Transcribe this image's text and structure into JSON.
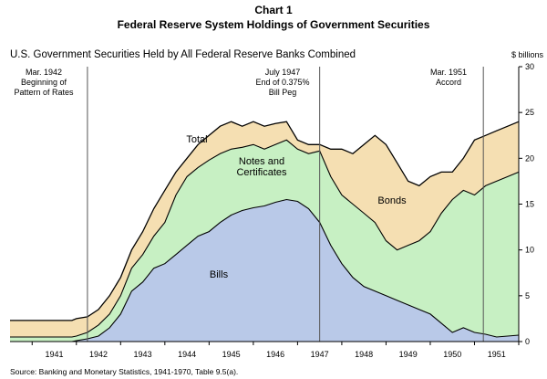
{
  "header": {
    "chart_number": "Chart 1",
    "title": "Federal Reserve System Holdings of Government Securities",
    "subtitle": "U.S. Government Securities Held by All Federal Reserve Banks Combined",
    "units": "$ billions"
  },
  "footer": {
    "source": "Source:  Banking and Monetary Statistics, 1941-1970, Table 9.5(a)."
  },
  "chart_data": {
    "type": "area",
    "xlim": [
      1940.5,
      1952.0
    ],
    "ylim": [
      0,
      30
    ],
    "y_ticks": [
      0,
      5,
      10,
      15,
      20,
      25,
      30
    ],
    "x_ticks": [
      1941,
      1942,
      1943,
      1944,
      1945,
      1946,
      1947,
      1948,
      1949,
      1950,
      1951
    ],
    "grid": false,
    "colors": {
      "bills": "#b9c9e8",
      "notes": "#c7f0c3",
      "bonds": "#f5dfb2",
      "line": "#000000",
      "event_line": "#555555"
    },
    "region_labels": {
      "total": "Total",
      "notes_line1": "Notes and",
      "notes_line2": "Certificates",
      "bonds": "Bonds",
      "bills": "Bills"
    },
    "events": [
      {
        "x": 1942.25,
        "lines": [
          "Mar. 1942",
          "Beginning of",
          "Pattern of Rates"
        ]
      },
      {
        "x": 1947.5,
        "lines": [
          "July 1947",
          "End of 0.375%",
          "Bill Peg"
        ]
      },
      {
        "x": 1951.2,
        "lines": [
          "Mar. 1951",
          "Accord"
        ]
      }
    ],
    "series": {
      "x": [
        1940.5,
        1941.0,
        1941.5,
        1941.9,
        1942.0,
        1942.25,
        1942.5,
        1942.75,
        1943.0,
        1943.25,
        1943.5,
        1943.75,
        1944.0,
        1944.25,
        1944.5,
        1944.75,
        1945.0,
        1945.25,
        1945.5,
        1945.75,
        1946.0,
        1946.25,
        1946.5,
        1946.75,
        1947.0,
        1947.25,
        1947.5,
        1947.75,
        1948.0,
        1948.25,
        1948.5,
        1948.75,
        1949.0,
        1949.25,
        1949.5,
        1949.75,
        1950.0,
        1950.25,
        1950.5,
        1950.75,
        1951.0,
        1951.25,
        1951.5,
        1951.75,
        1952.0
      ],
      "bills": [
        0.0,
        0.0,
        0.0,
        0.0,
        0.1,
        0.3,
        0.6,
        1.5,
        3.0,
        5.5,
        6.5,
        8.0,
        8.5,
        9.5,
        10.5,
        11.5,
        12.0,
        13.0,
        13.8,
        14.3,
        14.6,
        14.8,
        15.2,
        15.5,
        15.3,
        14.5,
        13.0,
        10.5,
        8.5,
        7.0,
        6.0,
        5.5,
        5.0,
        4.5,
        4.0,
        3.5,
        3.0,
        2.0,
        1.0,
        1.5,
        1.0,
        0.8,
        0.5,
        0.6,
        0.7
      ],
      "notes": [
        0.5,
        0.5,
        0.5,
        0.5,
        0.6,
        1.0,
        1.8,
        3.0,
        5.0,
        8.0,
        9.5,
        11.5,
        13.0,
        16.0,
        18.0,
        19.0,
        19.8,
        20.5,
        21.0,
        21.2,
        21.5,
        21.0,
        21.5,
        22.0,
        21.0,
        20.5,
        20.8,
        18.0,
        16.0,
        15.0,
        14.0,
        13.0,
        11.0,
        10.0,
        10.5,
        11.0,
        12.0,
        14.0,
        15.5,
        16.5,
        16.0,
        17.0,
        17.5,
        18.0,
        18.5
      ],
      "total": [
        2.3,
        2.3,
        2.3,
        2.3,
        2.5,
        2.7,
        3.5,
        5.0,
        7.0,
        10.0,
        12.0,
        14.5,
        16.5,
        18.5,
        20.0,
        21.5,
        22.5,
        23.5,
        24.0,
        23.5,
        24.0,
        23.5,
        23.8,
        24.0,
        22.0,
        21.5,
        21.5,
        21.0,
        21.0,
        20.5,
        21.5,
        22.5,
        21.5,
        19.5,
        17.5,
        17.0,
        18.0,
        18.5,
        18.5,
        20.0,
        22.0,
        22.5,
        23.0,
        23.5,
        24.0
      ]
    }
  }
}
